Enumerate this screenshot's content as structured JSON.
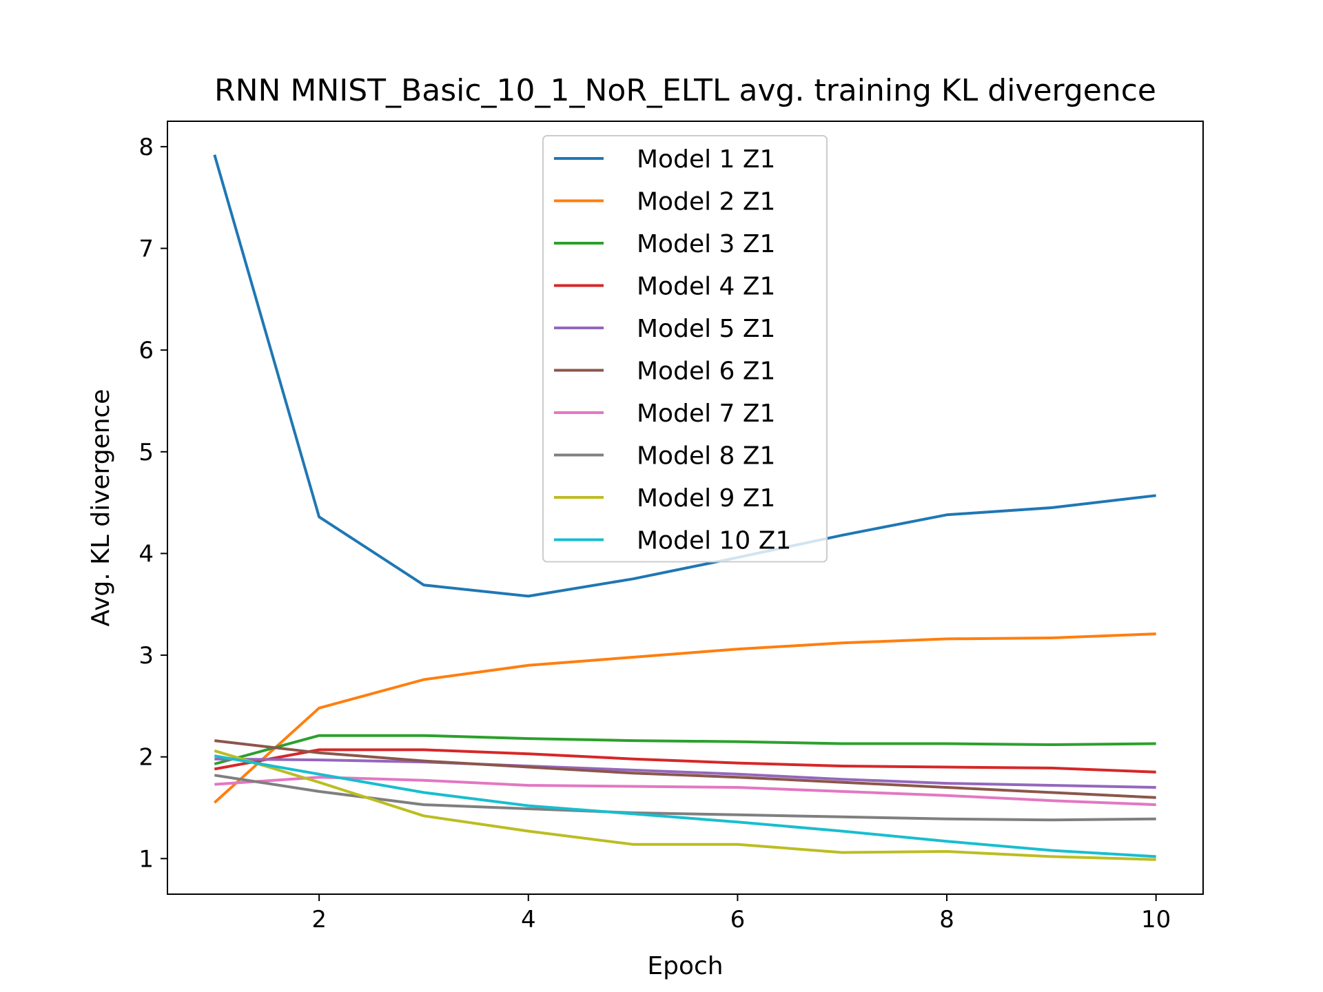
{
  "chart_data": {
    "type": "line",
    "title": "RNN MNIST_Basic_10_1_NoR_ELTL avg. training KL divergence",
    "xlabel": "Epoch",
    "ylabel": "Avg. KL divergence",
    "xlim": [
      0.55,
      10.45
    ],
    "ylim": [
      0.65,
      8.25
    ],
    "xticks": [
      2,
      4,
      6,
      8,
      10
    ],
    "yticks": [
      1,
      2,
      3,
      4,
      5,
      6,
      7,
      8
    ],
    "grid": false,
    "legend_position": "upper-center",
    "x": [
      1,
      2,
      3,
      4,
      5,
      6,
      7,
      8,
      9,
      10
    ],
    "series": [
      {
        "name": "Model 1 Z1",
        "color": "#1f77b4",
        "values": [
          7.92,
          4.36,
          3.69,
          3.58,
          3.75,
          3.96,
          4.18,
          4.38,
          4.45,
          4.57
        ]
      },
      {
        "name": "Model 2 Z1",
        "color": "#ff7f0e",
        "values": [
          1.55,
          2.48,
          2.76,
          2.9,
          2.98,
          3.06,
          3.12,
          3.16,
          3.17,
          3.21
        ]
      },
      {
        "name": "Model 3 Z1",
        "color": "#2ca02c",
        "values": [
          1.93,
          2.21,
          2.21,
          2.18,
          2.16,
          2.15,
          2.13,
          2.13,
          2.12,
          2.13
        ]
      },
      {
        "name": "Model 4 Z1",
        "color": "#d62728",
        "values": [
          1.88,
          2.07,
          2.07,
          2.03,
          1.98,
          1.94,
          1.91,
          1.9,
          1.89,
          1.85
        ]
      },
      {
        "name": "Model 5 Z1",
        "color": "#9467bd",
        "values": [
          1.98,
          1.97,
          1.95,
          1.91,
          1.87,
          1.83,
          1.78,
          1.74,
          1.72,
          1.7
        ]
      },
      {
        "name": "Model 6 Z1",
        "color": "#8c564b",
        "values": [
          2.16,
          2.04,
          1.96,
          1.9,
          1.84,
          1.8,
          1.75,
          1.7,
          1.65,
          1.6
        ]
      },
      {
        "name": "Model 7 Z1",
        "color": "#e377c2",
        "values": [
          1.73,
          1.8,
          1.77,
          1.72,
          1.71,
          1.7,
          1.66,
          1.62,
          1.57,
          1.53
        ]
      },
      {
        "name": "Model 8 Z1",
        "color": "#7f7f7f",
        "values": [
          1.82,
          1.66,
          1.53,
          1.49,
          1.45,
          1.43,
          1.41,
          1.39,
          1.38,
          1.39
        ]
      },
      {
        "name": "Model 9 Z1",
        "color": "#bcbd22",
        "values": [
          2.06,
          1.75,
          1.42,
          1.27,
          1.14,
          1.14,
          1.06,
          1.07,
          1.02,
          0.99
        ]
      },
      {
        "name": "Model 10 Z1",
        "color": "#17becf",
        "values": [
          2.01,
          1.83,
          1.65,
          1.52,
          1.44,
          1.36,
          1.27,
          1.17,
          1.08,
          1.02
        ]
      }
    ]
  }
}
